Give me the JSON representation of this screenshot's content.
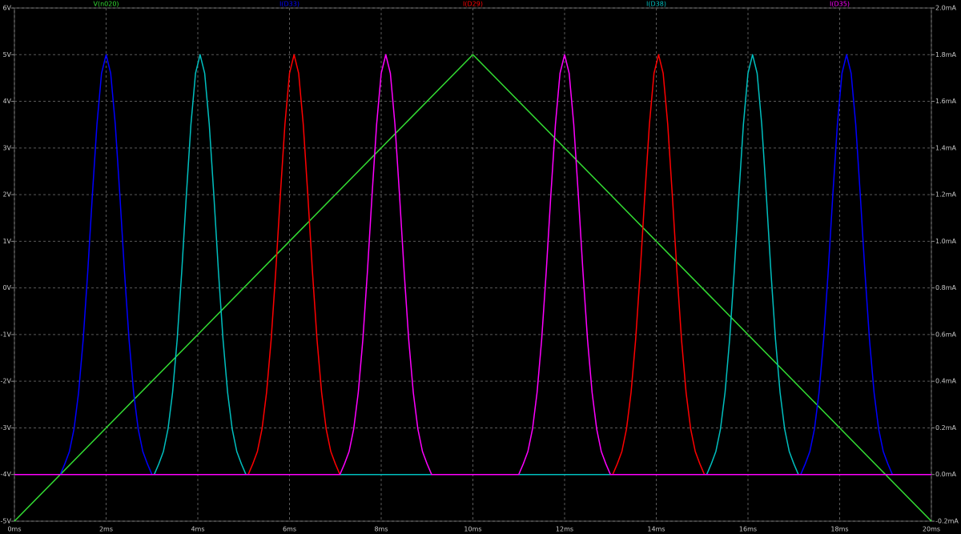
{
  "chart_data": {
    "type": "line",
    "grid": true,
    "xticks": [
      {
        "value": 0,
        "label": "0ms"
      },
      {
        "value": 2,
        "label": "2ms"
      },
      {
        "value": 4,
        "label": "4ms"
      },
      {
        "value": 6,
        "label": "6ms"
      },
      {
        "value": 8,
        "label": "8ms"
      },
      {
        "value": 10,
        "label": "10ms"
      },
      {
        "value": 12,
        "label": "12ms"
      },
      {
        "value": 14,
        "label": "14ms"
      },
      {
        "value": 16,
        "label": "16ms"
      },
      {
        "value": 18,
        "label": "18ms"
      },
      {
        "value": 20,
        "label": "20ms"
      }
    ],
    "xlim": [
      0,
      20
    ],
    "ylim": [
      -5,
      6
    ],
    "yticks": [
      {
        "value": -5,
        "label": "-5V"
      },
      {
        "value": -4,
        "label": "-4V"
      },
      {
        "value": -3,
        "label": "-3V"
      },
      {
        "value": -2,
        "label": "-2V"
      },
      {
        "value": -1,
        "label": "-1V"
      },
      {
        "value": 0,
        "label": "0V"
      },
      {
        "value": 1,
        "label": "1V"
      },
      {
        "value": 2,
        "label": "2V"
      },
      {
        "value": 3,
        "label": "3V"
      },
      {
        "value": 4,
        "label": "4V"
      },
      {
        "value": 5,
        "label": "5V"
      },
      {
        "value": 6,
        "label": "6V"
      }
    ],
    "y2lim": [
      -0.2,
      2.0
    ],
    "y2ticks": [
      {
        "value": -0.2,
        "label": "-0.2mA"
      },
      {
        "value": 0,
        "label": "0.0mA"
      },
      {
        "value": 0.2,
        "label": "0.2mA"
      },
      {
        "value": 0.4,
        "label": "0.4mA"
      },
      {
        "value": 0.6,
        "label": "0.6mA"
      },
      {
        "value": 0.8,
        "label": "0.8mA"
      },
      {
        "value": 1.0,
        "label": "1.0mA"
      },
      {
        "value": 1.2,
        "label": "1.2mA"
      },
      {
        "value": 1.4,
        "label": "1.4mA"
      },
      {
        "value": 1.6,
        "label": "1.6mA"
      },
      {
        "value": 1.8,
        "label": "1.8mA"
      },
      {
        "value": 2.0,
        "label": "2.0mA"
      }
    ],
    "series": [
      {
        "name": "V(n020)",
        "color": "#33dd33",
        "x": [
          0,
          10,
          20
        ],
        "values": [
          -5,
          5,
          -5
        ]
      },
      {
        "name": "I(D33)",
        "color": "#0000ff",
        "axis": "y2",
        "x": [
          0,
          1.0,
          1.1,
          1.2,
          1.3,
          1.4,
          1.5,
          1.6,
          1.7,
          1.8,
          1.9,
          2.0,
          2.1,
          2.2,
          2.3,
          2.4,
          2.5,
          2.6,
          2.7,
          2.8,
          2.9,
          3.0,
          17.15,
          17.25,
          17.35,
          17.45,
          17.55,
          17.65,
          17.75,
          17.85,
          17.95,
          18.05,
          18.15,
          18.25,
          18.35,
          18.45,
          18.55,
          18.65,
          18.75,
          18.85,
          18.95,
          19.05,
          19.15,
          20
        ],
        "values": [
          0,
          0,
          0.046,
          0.099,
          0.195,
          0.352,
          0.579,
          0.871,
          1.197,
          1.501,
          1.72,
          1.8,
          1.72,
          1.501,
          1.197,
          0.871,
          0.579,
          0.352,
          0.195,
          0.099,
          0.046,
          0,
          0,
          0.046,
          0.099,
          0.195,
          0.352,
          0.579,
          0.871,
          1.197,
          1.501,
          1.72,
          1.8,
          1.72,
          1.501,
          1.197,
          0.871,
          0.579,
          0.352,
          0.195,
          0.099,
          0.046,
          0,
          0
        ]
      },
      {
        "name": "I(D29)",
        "color": "#ff0000",
        "axis": "y2",
        "x": [
          0,
          5.1,
          5.2,
          5.3,
          5.4,
          5.5,
          5.6,
          5.7,
          5.8,
          5.9,
          6.0,
          6.1,
          6.2,
          6.3,
          6.4,
          6.5,
          6.6,
          6.7,
          6.8,
          6.9,
          7.0,
          7.1,
          13.05,
          13.15,
          13.25,
          13.35,
          13.45,
          13.55,
          13.65,
          13.75,
          13.85,
          13.95,
          14.05,
          14.15,
          14.25,
          14.35,
          14.45,
          14.55,
          14.65,
          14.75,
          14.85,
          14.95,
          15.05,
          20
        ],
        "values": [
          0,
          0,
          0.046,
          0.099,
          0.195,
          0.352,
          0.579,
          0.871,
          1.197,
          1.501,
          1.72,
          1.8,
          1.72,
          1.501,
          1.197,
          0.871,
          0.579,
          0.352,
          0.195,
          0.099,
          0.046,
          0,
          0,
          0.046,
          0.099,
          0.195,
          0.352,
          0.579,
          0.871,
          1.197,
          1.501,
          1.72,
          1.8,
          1.72,
          1.501,
          1.197,
          0.871,
          0.579,
          0.352,
          0.195,
          0.099,
          0.046,
          0,
          0
        ]
      },
      {
        "name": "I(D38)",
        "color": "#00bfbf",
        "axis": "y2",
        "x": [
          0,
          3.05,
          3.15,
          3.25,
          3.35,
          3.45,
          3.55,
          3.65,
          3.75,
          3.85,
          3.95,
          4.05,
          4.15,
          4.25,
          4.35,
          4.45,
          4.55,
          4.65,
          4.75,
          4.85,
          4.95,
          5.05,
          15.1,
          15.2,
          15.3,
          15.4,
          15.5,
          15.6,
          15.7,
          15.8,
          15.9,
          16.0,
          16.1,
          16.2,
          16.3,
          16.4,
          16.5,
          16.6,
          16.7,
          16.8,
          16.9,
          17.0,
          17.1,
          20
        ],
        "values": [
          0,
          0,
          0.046,
          0.099,
          0.195,
          0.352,
          0.579,
          0.871,
          1.197,
          1.501,
          1.72,
          1.8,
          1.72,
          1.501,
          1.197,
          0.871,
          0.579,
          0.352,
          0.195,
          0.099,
          0.046,
          0,
          0,
          0.046,
          0.099,
          0.195,
          0.352,
          0.579,
          0.871,
          1.197,
          1.501,
          1.72,
          1.8,
          1.72,
          1.501,
          1.197,
          0.871,
          0.579,
          0.352,
          0.195,
          0.099,
          0.046,
          0,
          0
        ]
      },
      {
        "name": "I(D35)",
        "color": "#ff00ff",
        "axis": "y2",
        "x": [
          0,
          7.1,
          7.2,
          7.3,
          7.4,
          7.5,
          7.6,
          7.7,
          7.8,
          7.9,
          8.0,
          8.1,
          8.2,
          8.3,
          8.4,
          8.5,
          8.6,
          8.7,
          8.8,
          8.9,
          9.0,
          9.1,
          11.0,
          11.1,
          11.2,
          11.3,
          11.4,
          11.5,
          11.6,
          11.7,
          11.8,
          11.9,
          12.0,
          12.1,
          12.2,
          12.3,
          12.4,
          12.5,
          12.6,
          12.7,
          12.8,
          12.9,
          13.0,
          20
        ],
        "values": [
          0,
          0,
          0.046,
          0.099,
          0.195,
          0.352,
          0.579,
          0.871,
          1.197,
          1.501,
          1.72,
          1.8,
          1.72,
          1.501,
          1.197,
          0.871,
          0.579,
          0.352,
          0.195,
          0.099,
          0.046,
          0,
          0,
          0.046,
          0.099,
          0.195,
          0.352,
          0.579,
          0.871,
          1.197,
          1.501,
          1.72,
          1.8,
          1.72,
          1.501,
          1.197,
          0.871,
          0.579,
          0.352,
          0.195,
          0.099,
          0.046,
          0,
          0
        ]
      }
    ]
  }
}
